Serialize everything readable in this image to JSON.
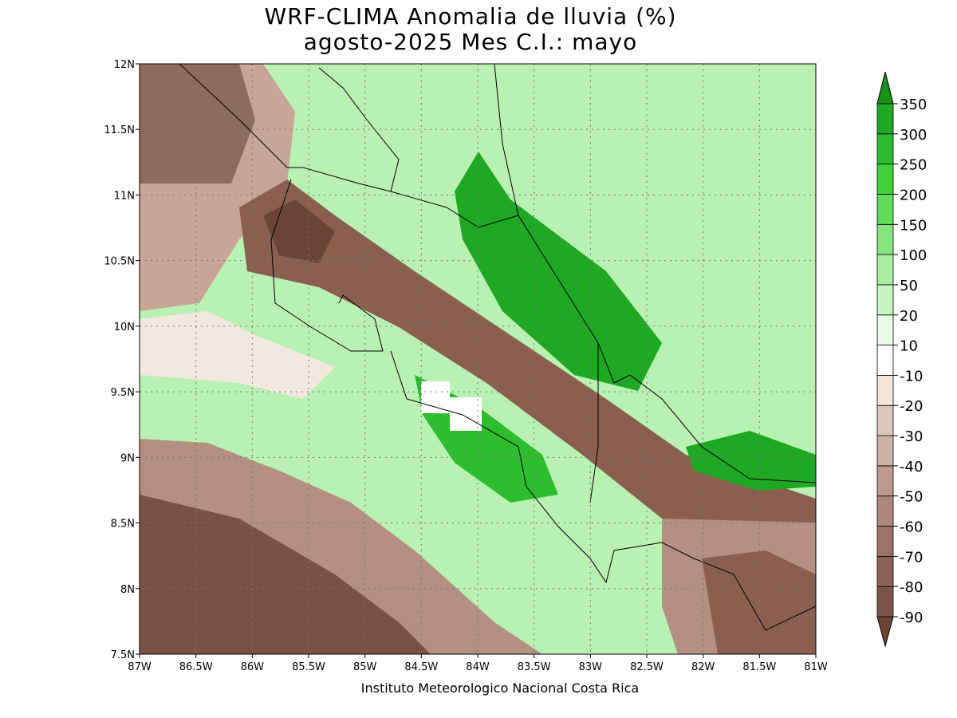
{
  "title": [
    "WRF-CLIMA Anomalia de lluvia (%)",
    "agosto-2025 Mes C.I.: mayo"
  ],
  "x_axis": {
    "ticks": [
      "87W",
      "86.5W",
      "86W",
      "85.5W",
      "85W",
      "84.5W",
      "84W",
      "83.5W",
      "83W",
      "82.5W",
      "82W",
      "81.5W",
      "81W"
    ]
  },
  "y_axis": {
    "ticks": [
      "7.5N",
      "8N",
      "8.5N",
      "9N",
      "9.5N",
      "10N",
      "10.5N",
      "11N",
      "11.5N",
      "12N"
    ]
  },
  "colorbar": {
    "levels": [
      -90,
      -80,
      -70,
      -60,
      -50,
      -40,
      -30,
      -20,
      -10,
      10,
      20,
      50,
      100,
      150,
      200,
      250,
      300,
      350
    ],
    "colors": [
      "#6b4436",
      "#7c5446",
      "#8c6455",
      "#9c7566",
      "#ad877a",
      "#bd9a8e",
      "#cdb0a5",
      "#dcc6bc",
      "#f2e6dc",
      "#ffffff",
      "#e6fde4",
      "#c8f6c2",
      "#a8efa0",
      "#86e67e",
      "#5fdc58",
      "#3fd23c",
      "#2cbe2e",
      "#1ea824",
      "#17931b"
    ]
  },
  "footer": "Instituto Meteorologico Nacional Costa Rica"
}
